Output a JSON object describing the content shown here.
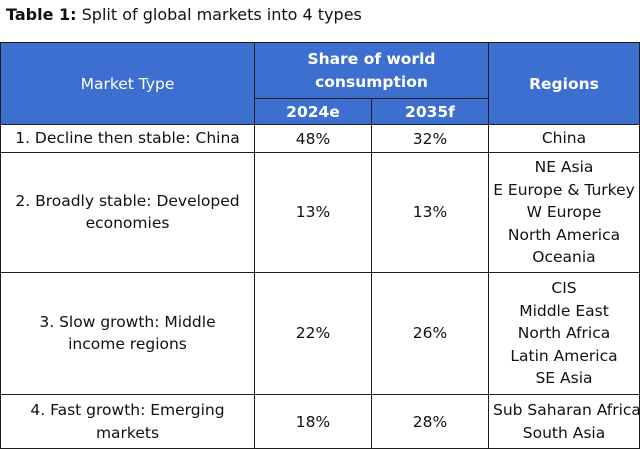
{
  "caption": {
    "label": "Table 1:",
    "text": "Split of global markets into 4 types"
  },
  "header": {
    "market_type": "Market Type",
    "share_line1": "Share of world",
    "share_line2": "consumption",
    "year1": "2024e",
    "year2": "2035f",
    "regions": "Regions"
  },
  "rows": [
    {
      "type_lines": [
        "1.  Decline then stable: China"
      ],
      "y2024": "48%",
      "y2035": "32%",
      "regions": [
        "China"
      ]
    },
    {
      "type_lines": [
        "2. Broadly stable: Developed",
        "economies"
      ],
      "y2024": "13%",
      "y2035": "13%",
      "regions": [
        "NE Asia",
        "E Europe & Turkey",
        "W Europe",
        "North America",
        "Oceania"
      ]
    },
    {
      "type_lines": [
        "3. Slow growth: Middle",
        "income regions"
      ],
      "y2024": "22%",
      "y2035": "26%",
      "regions": [
        "CIS",
        "Middle East",
        "North Africa",
        "Latin America",
        "SE Asia"
      ]
    },
    {
      "type_lines": [
        "4. Fast growth: Emerging",
        "markets"
      ],
      "y2024": "18%",
      "y2035": "28%",
      "regions": [
        "Sub Saharan Africa",
        "South Asia"
      ]
    }
  ],
  "colors": {
    "header_bg": "#3d6fd0",
    "header_text": "#ffffff",
    "border": "#1d1d1d"
  }
}
